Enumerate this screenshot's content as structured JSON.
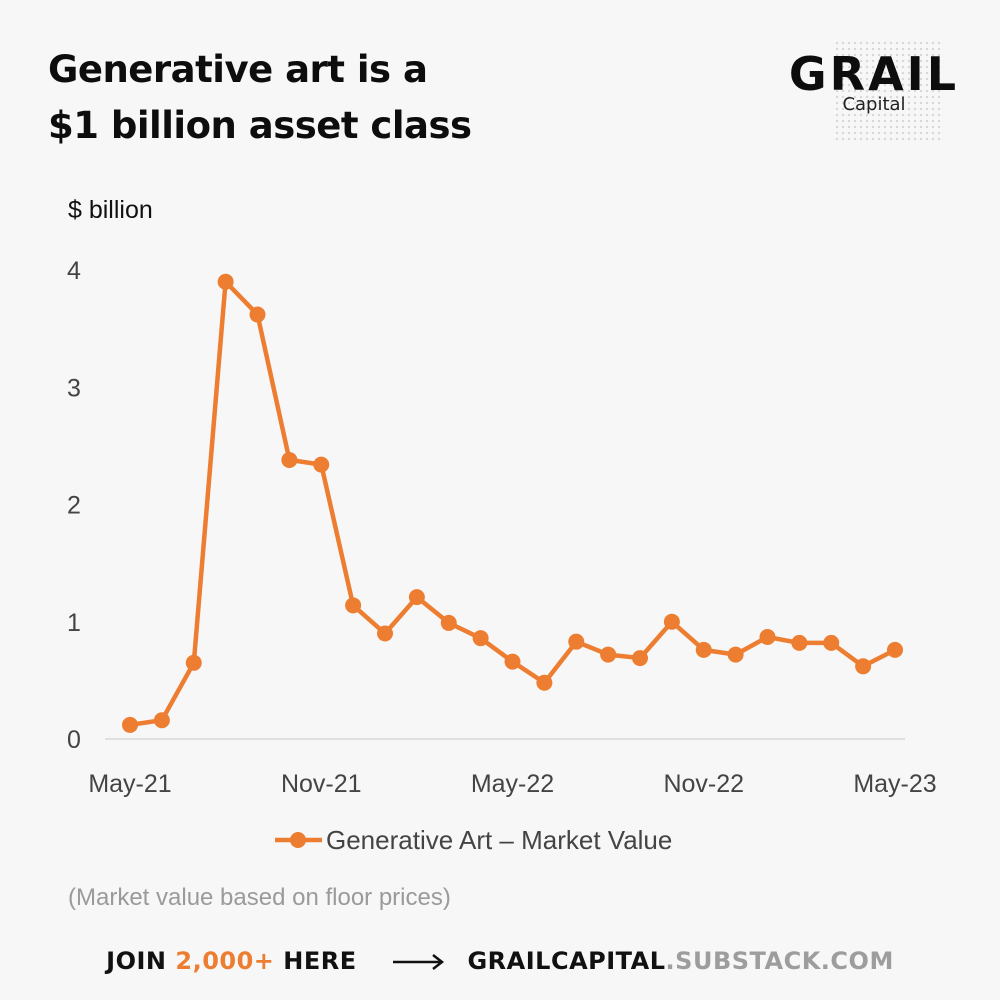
{
  "header": {
    "title_line1": "Generative art is a",
    "title_line2": "$1 billion asset class"
  },
  "logo": {
    "name": "GRAIL",
    "sub": "Capital"
  },
  "chart_data": {
    "type": "line",
    "ylabel": "$ billion",
    "ylim": [
      0,
      4
    ],
    "yticks": [
      0,
      1,
      2,
      3,
      4
    ],
    "x_tick_labels": [
      "May-21",
      "Nov-21",
      "May-22",
      "Nov-22",
      "May-23"
    ],
    "x_tick_indices": [
      0,
      6,
      12,
      18,
      24
    ],
    "series": [
      {
        "name": "Generative Art – Market Value",
        "color": "#ed7d31",
        "values": [
          0.12,
          0.16,
          0.65,
          3.9,
          3.62,
          2.38,
          2.34,
          1.14,
          0.9,
          1.21,
          0.99,
          0.86,
          0.66,
          0.48,
          0.83,
          0.72,
          0.69,
          1.0,
          0.76,
          0.72,
          0.87,
          0.82,
          0.82,
          0.62,
          0.76
        ]
      }
    ],
    "legend_position": "bottom",
    "grid": false
  },
  "note": "(Market value based on floor prices)",
  "footer": {
    "join_prefix": "JOIN",
    "join_count": "2,000+",
    "join_suffix": "HERE",
    "site_main": "GRAILCAPITAL",
    "site_tail": ".SUBSTACK.COM"
  },
  "colors": {
    "accent": "#ed7d31",
    "background": "#f7f7f7"
  }
}
